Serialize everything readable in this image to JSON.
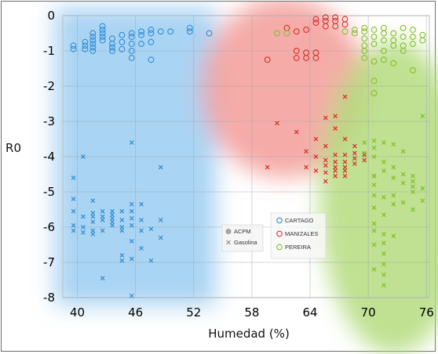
{
  "chart_data": {
    "type": "scatter",
    "xlabel": "Humedad (%)",
    "ylabel": "R0",
    "xlim": [
      38.5,
      76.3
    ],
    "ylim": [
      -8.0,
      0.0
    ],
    "xticks": [
      "40",
      "46",
      "52",
      "58",
      "64",
      "70",
      "76"
    ],
    "yticks": [
      "0",
      "-1",
      "-2",
      "-3",
      "-4",
      "-5",
      "-6",
      "-7",
      "-8"
    ],
    "grid": true,
    "colors": {
      "CARTAGO": "#2f8fd6",
      "MANIZALES": "#d9302b",
      "PEREIRA": "#84bf2b"
    },
    "legend_fuel": [
      {
        "label": "ACPM",
        "marker": "circle"
      },
      {
        "label": "Gasolina",
        "marker": "x"
      }
    ],
    "legend_city": [
      {
        "label": "CARTAGO",
        "marker": "circle"
      },
      {
        "label": "MANIZALES",
        "marker": "circle"
      },
      {
        "label": "PEREIRA",
        "marker": "circle"
      }
    ],
    "series": [
      {
        "name": "CARTAGO",
        "marker": "circle",
        "points": [
          [
            39.6,
            -0.95
          ],
          [
            39.6,
            -0.85
          ],
          [
            40.8,
            -0.75
          ],
          [
            40.8,
            -0.85
          ],
          [
            40.8,
            -0.95
          ],
          [
            41.6,
            -0.5
          ],
          [
            41.6,
            -0.6
          ],
          [
            41.6,
            -0.7
          ],
          [
            41.6,
            -0.8
          ],
          [
            41.6,
            -0.9
          ],
          [
            41.6,
            -1.0
          ],
          [
            42.6,
            -0.3
          ],
          [
            42.6,
            -0.4
          ],
          [
            42.6,
            -0.5
          ],
          [
            42.6,
            -0.6
          ],
          [
            42.6,
            -0.7
          ],
          [
            43.6,
            -0.65
          ],
          [
            43.6,
            -0.8
          ],
          [
            43.6,
            -0.9
          ],
          [
            43.6,
            -1.0
          ],
          [
            44.6,
            -0.55
          ],
          [
            44.6,
            -0.75
          ],
          [
            44.6,
            -0.95
          ],
          [
            45.6,
            -0.5
          ],
          [
            45.6,
            -0.6
          ],
          [
            45.6,
            -0.8
          ],
          [
            45.6,
            -1.0
          ],
          [
            45.6,
            -1.2
          ],
          [
            46.6,
            -0.45
          ],
          [
            46.6,
            -0.55
          ],
          [
            46.6,
            -0.8
          ],
          [
            47.6,
            -0.4
          ],
          [
            47.6,
            -0.5
          ],
          [
            47.6,
            -0.75
          ],
          [
            47.6,
            -1.25
          ],
          [
            48.6,
            -0.45
          ],
          [
            49.6,
            -0.45
          ],
          [
            51.6,
            -0.35
          ],
          [
            51.6,
            -0.45
          ],
          [
            53.6,
            -0.5
          ]
        ]
      },
      {
        "name": "CARTAGO",
        "marker": "x",
        "points": [
          [
            39.6,
            -4.6
          ],
          [
            39.6,
            -5.2
          ],
          [
            39.6,
            -5.55
          ],
          [
            39.6,
            -5.95
          ],
          [
            39.6,
            -6.1
          ],
          [
            40.6,
            -4.0
          ],
          [
            40.6,
            -5.7
          ],
          [
            40.6,
            -6.0
          ],
          [
            40.6,
            -6.15
          ],
          [
            41.6,
            -5.25
          ],
          [
            41.6,
            -5.6
          ],
          [
            41.6,
            -5.7
          ],
          [
            41.6,
            -5.85
          ],
          [
            41.6,
            -6.1
          ],
          [
            41.6,
            -6.2
          ],
          [
            42.6,
            -5.55
          ],
          [
            42.6,
            -5.7
          ],
          [
            42.6,
            -5.8
          ],
          [
            42.6,
            -6.1
          ],
          [
            42.6,
            -7.45
          ],
          [
            43.6,
            -5.55
          ],
          [
            43.6,
            -5.65
          ],
          [
            43.6,
            -5.75
          ],
          [
            43.6,
            -5.85
          ],
          [
            43.6,
            -5.95
          ],
          [
            44.6,
            -5.55
          ],
          [
            44.6,
            -5.8
          ],
          [
            44.6,
            -6.0
          ],
          [
            44.6,
            -6.1
          ],
          [
            44.6,
            -6.8
          ],
          [
            44.6,
            -6.95
          ],
          [
            45.6,
            -3.6
          ],
          [
            45.6,
            -5.35
          ],
          [
            45.6,
            -5.55
          ],
          [
            45.6,
            -5.75
          ],
          [
            45.6,
            -5.95
          ],
          [
            45.6,
            -6.4
          ],
          [
            45.6,
            -6.9
          ],
          [
            45.6,
            -7.95
          ],
          [
            46.6,
            -5.35
          ],
          [
            46.6,
            -5.8
          ],
          [
            46.6,
            -6.1
          ],
          [
            46.6,
            -6.6
          ],
          [
            47.6,
            -6.05
          ],
          [
            47.6,
            -6.95
          ],
          [
            48.6,
            -4.3
          ],
          [
            48.6,
            -5.8
          ],
          [
            48.6,
            -6.3
          ]
        ]
      },
      {
        "name": "MANIZALES",
        "marker": "circle",
        "points": [
          [
            59.6,
            -1.25
          ],
          [
            61.6,
            -0.35
          ],
          [
            62.6,
            -0.45
          ],
          [
            62.6,
            -1.0
          ],
          [
            62.6,
            -1.2
          ],
          [
            63.6,
            -0.4
          ],
          [
            63.6,
            -1.05
          ],
          [
            63.6,
            -1.2
          ],
          [
            64.6,
            -0.1
          ],
          [
            64.6,
            -0.2
          ],
          [
            64.6,
            -1.05
          ],
          [
            64.6,
            -1.2
          ],
          [
            65.6,
            -0.05
          ],
          [
            65.6,
            -0.15
          ],
          [
            65.6,
            -0.3
          ],
          [
            66.6,
            -0.05
          ],
          [
            66.6,
            -0.15
          ],
          [
            66.6,
            -0.3
          ],
          [
            67.6,
            -0.1
          ],
          [
            67.6,
            -0.25
          ]
        ]
      },
      {
        "name": "MANIZALES",
        "marker": "x",
        "points": [
          [
            59.6,
            -4.3
          ],
          [
            60.6,
            -3.05
          ],
          [
            62.6,
            -3.3
          ],
          [
            63.6,
            -3.85
          ],
          [
            63.6,
            -4.3
          ],
          [
            64.6,
            -3.5
          ],
          [
            64.6,
            -4.0
          ],
          [
            64.6,
            -4.4
          ],
          [
            65.6,
            -2.9
          ],
          [
            65.6,
            -3.7
          ],
          [
            65.6,
            -4.1
          ],
          [
            65.6,
            -4.25
          ],
          [
            65.6,
            -4.45
          ],
          [
            65.6,
            -4.7
          ],
          [
            66.6,
            -2.85
          ],
          [
            66.6,
            -3.2
          ],
          [
            66.6,
            -3.95
          ],
          [
            66.6,
            -4.15
          ],
          [
            66.6,
            -4.3
          ],
          [
            66.6,
            -4.4
          ],
          [
            66.6,
            -4.55
          ],
          [
            67.6,
            -2.3
          ],
          [
            67.6,
            -3.5
          ],
          [
            67.6,
            -3.95
          ],
          [
            67.6,
            -4.15
          ],
          [
            67.6,
            -4.3
          ],
          [
            67.6,
            -4.4
          ],
          [
            67.6,
            -4.55
          ],
          [
            68.6,
            -3.7
          ],
          [
            68.6,
            -3.9
          ],
          [
            68.6,
            -4.05
          ],
          [
            68.6,
            -4.2
          ],
          [
            69.6,
            -3.95
          ],
          [
            69.6,
            -4.1
          ],
          [
            70.6,
            -4.55
          ]
        ]
      },
      {
        "name": "PEREIRA",
        "marker": "circle",
        "points": [
          [
            60.6,
            -0.5
          ],
          [
            61.6,
            -0.5
          ],
          [
            67.6,
            -0.45
          ],
          [
            68.6,
            -0.4
          ],
          [
            68.6,
            -0.5
          ],
          [
            69.6,
            -0.35
          ],
          [
            69.6,
            -0.45
          ],
          [
            69.6,
            -0.65
          ],
          [
            69.6,
            -0.85
          ],
          [
            69.6,
            -1.0
          ],
          [
            69.6,
            -1.2
          ],
          [
            70.6,
            -0.4
          ],
          [
            70.6,
            -0.6
          ],
          [
            70.6,
            -0.8
          ],
          [
            70.6,
            -1.3
          ],
          [
            70.6,
            -1.85
          ],
          [
            70.6,
            -2.2
          ],
          [
            71.6,
            -0.35
          ],
          [
            71.6,
            -0.5
          ],
          [
            71.6,
            -0.7
          ],
          [
            71.6,
            -1.0
          ],
          [
            71.6,
            -1.25
          ],
          [
            72.6,
            -0.5
          ],
          [
            72.6,
            -0.7
          ],
          [
            72.6,
            -0.85
          ],
          [
            72.6,
            -1.35
          ],
          [
            73.6,
            -0.35
          ],
          [
            73.6,
            -0.6
          ],
          [
            73.6,
            -0.85
          ],
          [
            73.6,
            -1.0
          ],
          [
            74.6,
            -0.4
          ],
          [
            74.6,
            -0.6
          ],
          [
            74.6,
            -0.8
          ],
          [
            74.6,
            -1.55
          ],
          [
            75.6,
            -0.55
          ],
          [
            75.6,
            -0.7
          ]
        ]
      },
      {
        "name": "PEREIRA",
        "marker": "x",
        "points": [
          [
            69.6,
            -3.6
          ],
          [
            69.6,
            -3.9
          ],
          [
            70.6,
            -3.55
          ],
          [
            70.6,
            -3.75
          ],
          [
            70.6,
            -4.0
          ],
          [
            70.6,
            -4.55
          ],
          [
            70.6,
            -4.8
          ],
          [
            70.6,
            -5.1
          ],
          [
            70.6,
            -5.45
          ],
          [
            70.6,
            -5.9
          ],
          [
            70.6,
            -6.1
          ],
          [
            70.6,
            -6.5
          ],
          [
            70.6,
            -7.2
          ],
          [
            71.6,
            -3.6
          ],
          [
            71.6,
            -4.15
          ],
          [
            71.6,
            -4.4
          ],
          [
            71.6,
            -5.15
          ],
          [
            71.6,
            -5.65
          ],
          [
            71.6,
            -6.2
          ],
          [
            71.6,
            -6.45
          ],
          [
            71.6,
            -6.75
          ],
          [
            71.6,
            -7.05
          ],
          [
            71.6,
            -7.35
          ],
          [
            71.6,
            -7.65
          ],
          [
            72.6,
            -3.65
          ],
          [
            72.6,
            -4.3
          ],
          [
            72.6,
            -4.6
          ],
          [
            72.6,
            -5.1
          ],
          [
            72.6,
            -5.35
          ],
          [
            72.6,
            -6.25
          ],
          [
            73.6,
            -3.85
          ],
          [
            73.6,
            -4.5
          ],
          [
            73.6,
            -4.75
          ],
          [
            73.6,
            -5.3
          ],
          [
            74.6,
            -4.55
          ],
          [
            74.6,
            -4.7
          ],
          [
            74.6,
            -4.85
          ],
          [
            74.6,
            -5.0
          ],
          [
            74.6,
            -5.5
          ],
          [
            75.6,
            -2.85
          ],
          [
            75.6,
            -4.9
          ],
          [
            75.6,
            -5.25
          ]
        ]
      }
    ]
  }
}
